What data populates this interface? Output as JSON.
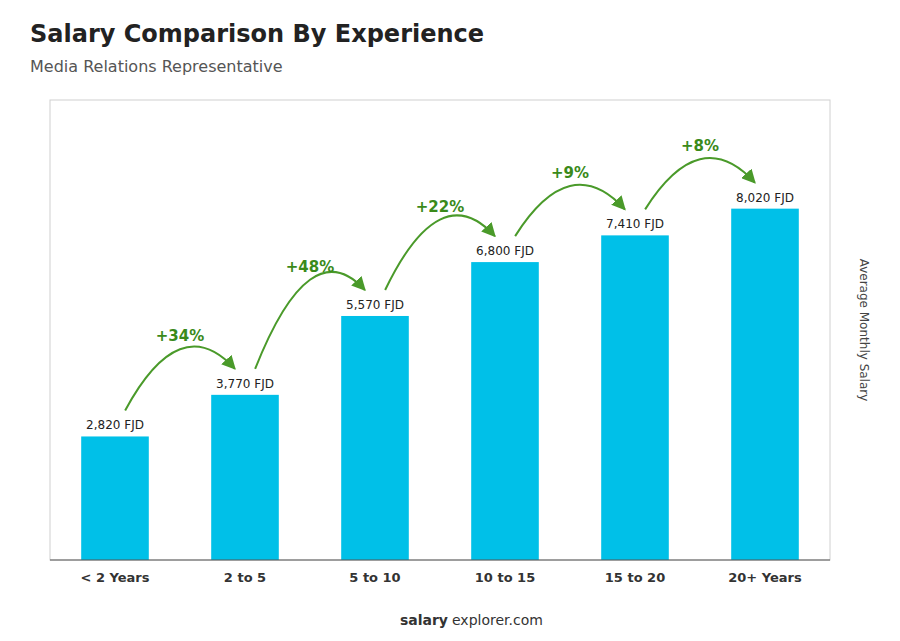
{
  "chart_data": {
    "type": "bar",
    "title": "Salary Comparison By Experience",
    "subtitle": "Media Relations Representative",
    "categories": [
      "< 2 Years",
      "2 to 5",
      "5 to 10",
      "10 to 15",
      "15 to 20",
      "20+ Years"
    ],
    "values": [
      2820,
      3770,
      5570,
      6800,
      7410,
      8020
    ],
    "value_labels": [
      "2,820 FJD",
      "3,770 FJD",
      "5,570 FJD",
      "6,800 FJD",
      "7,410 FJD",
      "8,020 FJD"
    ],
    "data_labels": true,
    "annotations": [
      "+34%",
      "+48%",
      "+22%",
      "+9%",
      "+8%"
    ],
    "y_label": "Average Monthly Salary",
    "footer": [
      "salary",
      "explorer.com"
    ],
    "color": "#00C0E8",
    "ylim": [
      0,
      10500
    ],
    "yticks": [],
    "tick_labels": "x",
    "grid": false
  }
}
